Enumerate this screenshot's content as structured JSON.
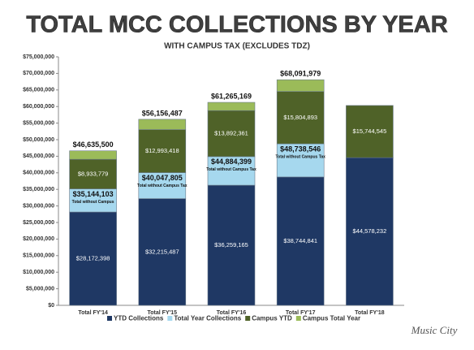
{
  "chart_data": {
    "type": "stacked_bar",
    "title": "TOTAL MCC COLLECTIONS BY YEAR",
    "subtitle": "WITH CAMPUS TAX (EXCLUDES TDZ)",
    "categories": [
      "Total FY'14",
      "Total FY'15",
      "Total FY'16",
      "Total FY'17",
      "Total FY'18"
    ],
    "series": [
      {
        "name": "YTD Collections",
        "color": "#1f3864",
        "values": [
          28172398,
          32215487,
          36259165,
          38744841,
          44578232
        ],
        "value_labels": [
          "$28,172,398",
          "$32,215,487",
          "$36,259,165",
          "$38,744,841",
          "$44,578,232"
        ]
      },
      {
        "name": "Total Year Collections",
        "color": "#a6d8ee",
        "values": [
          6971705,
          7832318,
          8625234,
          9993705,
          null
        ]
      },
      {
        "name": "Campus YTD",
        "color": "#4f6228",
        "values": [
          8933779,
          12993418,
          13892361,
          15804893,
          15744545
        ],
        "value_labels": [
          "$8,933,779",
          "$12,993,418",
          "$13,892,361",
          "$15,804,893",
          "$15,744,545"
        ]
      },
      {
        "name": "Campus Total Year",
        "color": "#9bbb59",
        "values": [
          2557618,
          3115264,
          2488409,
          3548540,
          null
        ]
      }
    ],
    "subtotals": [
      35144103,
      40047805,
      44884399,
      48738546,
      null
    ],
    "subtotal_labels": [
      "$35,144,103",
      "$40,047,805",
      "$44,884,399",
      "$48,738,546",
      null
    ],
    "subtotal_notes": [
      "Total without Campus",
      "Total without Campus Tax",
      "Total without Campus Tax",
      "Total without Campus Tax",
      null
    ],
    "totals": [
      46635500,
      56156487,
      61265169,
      68091979,
      null
    ],
    "total_labels": [
      "$46,635,500",
      "$56,156,487",
      "$61,265,169",
      "$68,091,979",
      null
    ],
    "ylim": [
      0,
      75000000
    ],
    "yticks": [
      {
        "value": 0,
        "label": "$0"
      },
      {
        "value": 5000000,
        "label": "$5,000,000"
      },
      {
        "value": 10000000,
        "label": "$10,000,000"
      },
      {
        "value": 15000000,
        "label": "$15,000,000"
      },
      {
        "value": 20000000,
        "label": "$20,000,000"
      },
      {
        "value": 25000000,
        "label": "$25,000,000"
      },
      {
        "value": 30000000,
        "label": "$30,000,000"
      },
      {
        "value": 35000000,
        "label": "$35,000,000"
      },
      {
        "value": 40000000,
        "label": "$40,000,000"
      },
      {
        "value": 45000000,
        "label": "$45,000,000"
      },
      {
        "value": 50000000,
        "label": "$50,000,000"
      },
      {
        "value": 55000000,
        "label": "$55,000,000"
      },
      {
        "value": 60000000,
        "label": "$60,000,000"
      },
      {
        "value": 65000000,
        "label": "$65,000,000"
      },
      {
        "value": 70000000,
        "label": "$70,000,000"
      },
      {
        "value": 75000000,
        "label": "$75,000,000"
      }
    ],
    "grid": false,
    "legend": "bottom",
    "logo": "Music City"
  }
}
